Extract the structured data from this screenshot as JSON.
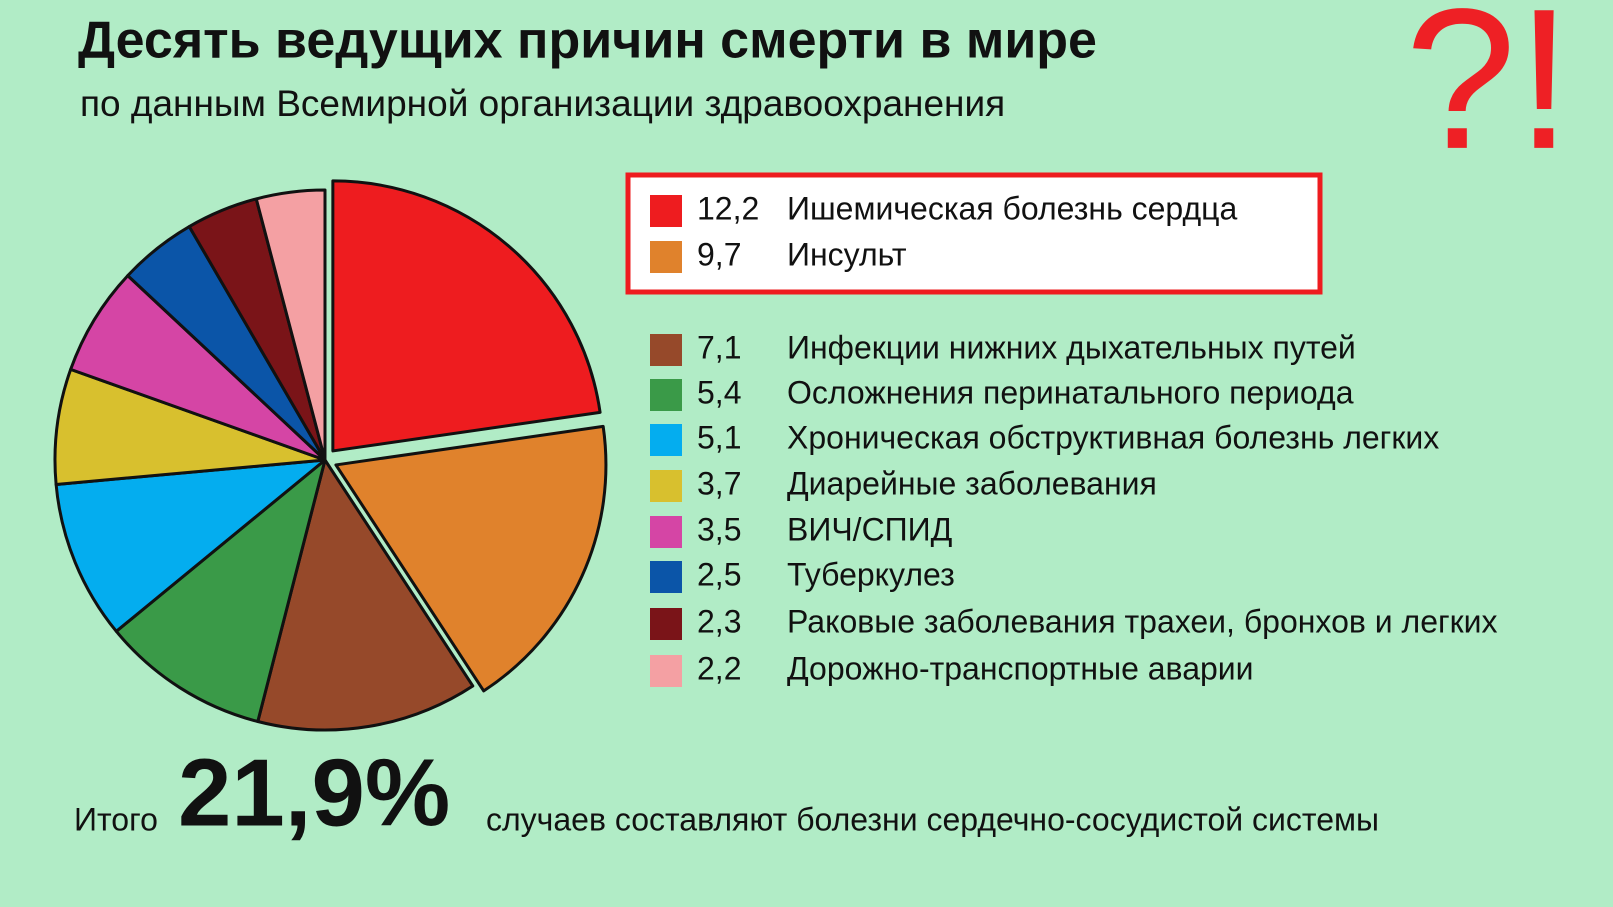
{
  "chart_data": {
    "type": "pie",
    "title": "Десять ведущих причин смерти в мире",
    "subtitle": "по данным Всемирной организации здравоохранения",
    "categories": [
      "Ишемическая болезнь сердца",
      "Инсульт",
      "Инфекции нижних дыхательных путей",
      "Осложнения перинатального периода",
      "Хроническая обструктивная болезнь легких",
      "Диарейные заболевания",
      "ВИЧ/СПИД",
      "Туберкулез",
      "Раковые заболевания трахеи, бронхов и легких",
      "Дорожно-транспортные аварии"
    ],
    "values": [
      12.2,
      9.7,
      7.1,
      5.4,
      5.1,
      3.7,
      3.5,
      2.5,
      2.3,
      2.2
    ],
    "value_labels": [
      "12,2",
      "9,7",
      "7,1",
      "5,4",
      "5,1",
      "3,7",
      "3,5",
      "2,5",
      "2,3",
      "2,2"
    ],
    "colors": [
      "#ee1c1f",
      "#e0822c",
      "#96492a",
      "#3a9a48",
      "#04adef",
      "#d8c02e",
      "#d545a5",
      "#0b55a8",
      "#7a1418",
      "#f4a0a3"
    ],
    "annotations": {
      "mark": "?!",
      "total_prefix": "Итого",
      "total": "21,9%",
      "total_suffix": "случаев составляют болезни сердечно-сосудистой системы"
    }
  }
}
